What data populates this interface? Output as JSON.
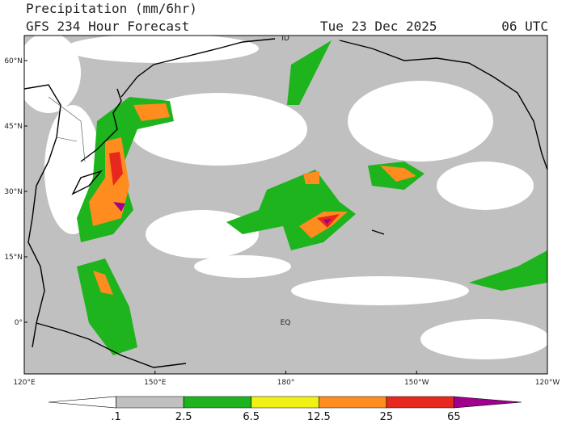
{
  "header": {
    "title": "Precipitation (mm/6hr)",
    "subtitle": "GFS 234 Hour Forecast",
    "date": "Tue 23 Dec 2025",
    "time": "06 UTC"
  },
  "map": {
    "lat_labels": [
      "60°N",
      "45°N",
      "30°N",
      "15°N",
      "0°"
    ],
    "lon_labels": [
      "120°E",
      "150°E",
      "180°",
      "150°W",
      "120°W"
    ],
    "annotations": [
      "ID",
      "EQ"
    ]
  },
  "colorbar": {
    "levels": [
      ".1",
      "2.5",
      "6.5",
      "12.5",
      "25",
      "65"
    ],
    "colors": [
      "#ffffff",
      "#c0c0c0",
      "#1eb41e",
      "#f0f014",
      "#ff8c1e",
      "#e6281e",
      "#a0008c"
    ]
  }
}
